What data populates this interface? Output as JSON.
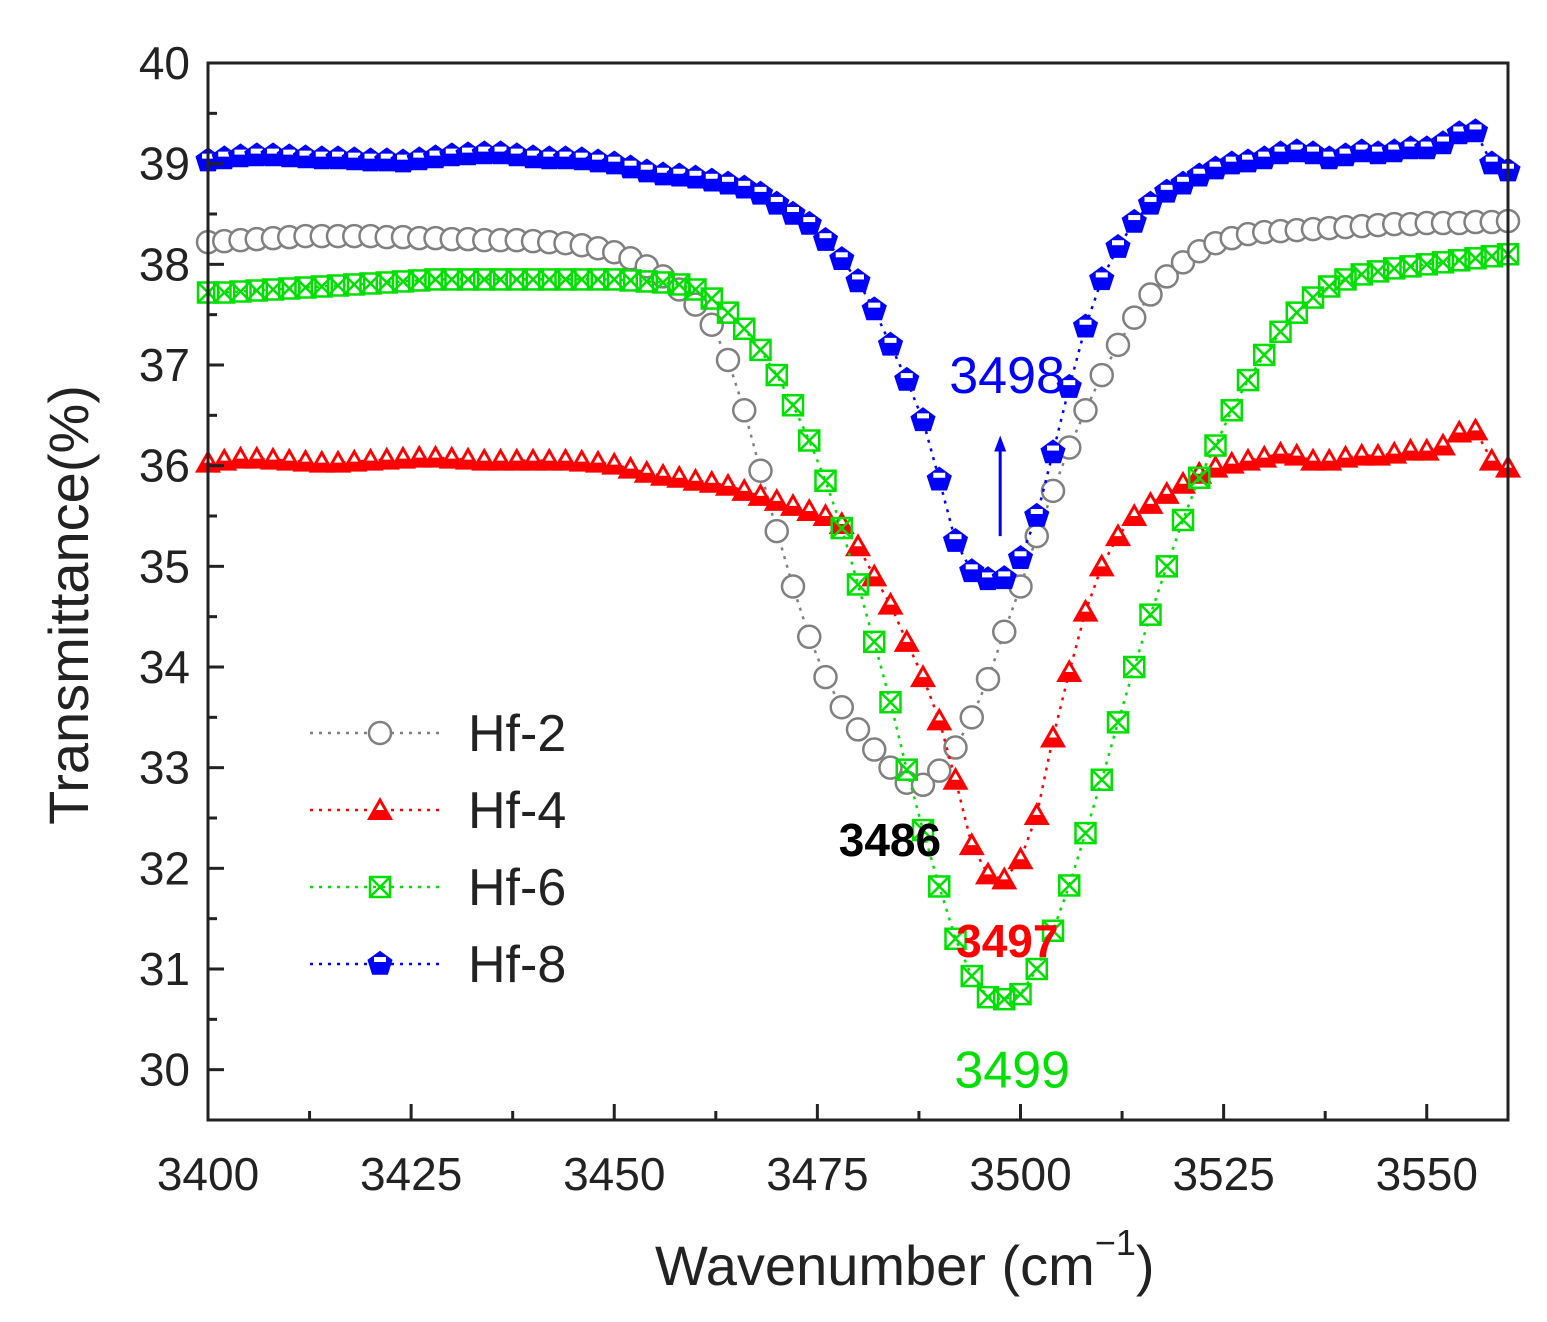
{
  "chart_data": {
    "type": "line",
    "xlabel": "Wavenumber  (cm",
    "xlabel_sup": "−1",
    "xlabel_close": ")",
    "ylabel": "Transmittance(%)",
    "xlim": [
      3400,
      3560
    ],
    "ylim": [
      29.5,
      40
    ],
    "xticks": [
      3400,
      3425,
      3450,
      3475,
      3500,
      3525,
      3550
    ],
    "yticks": [
      30,
      31,
      32,
      33,
      34,
      35,
      36,
      37,
      38,
      39,
      40
    ],
    "grid": false,
    "legend_position": "bottom-left",
    "x": [
      3400,
      3402,
      3404,
      3406,
      3408,
      3410,
      3412,
      3414,
      3416,
      3418,
      3420,
      3422,
      3424,
      3426,
      3428,
      3430,
      3432,
      3434,
      3436,
      3438,
      3440,
      3442,
      3444,
      3446,
      3448,
      3450,
      3452,
      3454,
      3456,
      3458,
      3460,
      3462,
      3464,
      3466,
      3468,
      3470,
      3472,
      3474,
      3476,
      3478,
      3480,
      3482,
      3484,
      3486,
      3488,
      3490,
      3492,
      3494,
      3496,
      3498,
      3500,
      3502,
      3504,
      3506,
      3508,
      3510,
      3512,
      3514,
      3516,
      3518,
      3520,
      3522,
      3524,
      3526,
      3528,
      3530,
      3532,
      3534,
      3536,
      3538,
      3540,
      3542,
      3544,
      3546,
      3548,
      3550,
      3552,
      3554,
      3556,
      3558,
      3560
    ],
    "series": [
      {
        "name": "Hf-2",
        "color": "#808080",
        "marker": "open-circle",
        "values": [
          38.22,
          38.23,
          38.24,
          38.25,
          38.26,
          38.27,
          38.28,
          38.28,
          38.28,
          38.28,
          38.28,
          38.27,
          38.27,
          38.26,
          38.26,
          38.25,
          38.25,
          38.24,
          38.24,
          38.24,
          38.23,
          38.22,
          38.21,
          38.19,
          38.16,
          38.12,
          38.06,
          37.98,
          37.88,
          37.75,
          37.6,
          37.4,
          37.05,
          36.55,
          35.95,
          35.35,
          34.8,
          34.3,
          33.9,
          33.6,
          33.38,
          33.18,
          33.0,
          32.85,
          32.83,
          32.97,
          33.2,
          33.5,
          33.88,
          34.35,
          34.8,
          35.3,
          35.75,
          36.18,
          36.55,
          36.9,
          37.2,
          37.47,
          37.7,
          37.88,
          38.02,
          38.13,
          38.21,
          38.26,
          38.3,
          38.32,
          38.33,
          38.34,
          38.35,
          38.36,
          38.37,
          38.38,
          38.39,
          38.4,
          38.4,
          38.41,
          38.41,
          38.41,
          38.42,
          38.42,
          38.43
        ]
      },
      {
        "name": "Hf-4",
        "color": "#ff0000",
        "marker": "triangle",
        "values": [
          36.03,
          36.05,
          36.07,
          36.07,
          36.06,
          36.05,
          36.04,
          36.03,
          36.03,
          36.04,
          36.05,
          36.06,
          36.07,
          36.08,
          36.08,
          36.07,
          36.06,
          36.05,
          36.05,
          36.05,
          36.05,
          36.05,
          36.05,
          36.04,
          36.03,
          36.01,
          35.97,
          35.93,
          35.9,
          35.88,
          35.85,
          35.83,
          35.8,
          35.75,
          35.7,
          35.65,
          35.6,
          35.55,
          35.5,
          35.42,
          35.2,
          34.9,
          34.62,
          34.25,
          33.9,
          33.47,
          32.88,
          32.23,
          31.94,
          31.89,
          32.09,
          32.53,
          33.3,
          33.95,
          34.55,
          35.0,
          35.3,
          35.5,
          35.62,
          35.72,
          35.82,
          35.92,
          35.98,
          36.02,
          36.05,
          36.08,
          36.12,
          36.1,
          36.05,
          36.05,
          36.08,
          36.1,
          36.1,
          36.12,
          36.15,
          36.15,
          36.2,
          36.33,
          36.35,
          36.05,
          35.98
        ]
      },
      {
        "name": "Hf-6",
        "color": "#00e000",
        "marker": "crossed-square",
        "values": [
          37.72,
          37.72,
          37.73,
          37.74,
          37.75,
          37.76,
          37.77,
          37.78,
          37.79,
          37.8,
          37.81,
          37.82,
          37.83,
          37.84,
          37.85,
          37.85,
          37.85,
          37.85,
          37.85,
          37.85,
          37.85,
          37.85,
          37.85,
          37.85,
          37.85,
          37.85,
          37.84,
          37.83,
          37.82,
          37.8,
          37.75,
          37.66,
          37.52,
          37.36,
          37.15,
          36.9,
          36.6,
          36.25,
          35.85,
          35.38,
          34.82,
          34.25,
          33.65,
          32.98,
          32.38,
          31.82,
          31.3,
          30.93,
          30.72,
          30.7,
          30.75,
          31.0,
          31.38,
          31.83,
          32.35,
          32.88,
          33.45,
          34.0,
          34.52,
          35.0,
          35.46,
          35.88,
          36.2,
          36.55,
          36.85,
          37.1,
          37.33,
          37.52,
          37.67,
          37.78,
          37.85,
          37.9,
          37.93,
          37.96,
          37.98,
          38.0,
          38.02,
          38.04,
          38.06,
          38.08,
          38.1
        ]
      },
      {
        "name": "Hf-8",
        "color": "#0000ff",
        "marker": "pentagon",
        "values": [
          39.03,
          39.05,
          39.07,
          39.08,
          39.08,
          39.07,
          39.06,
          39.05,
          39.05,
          39.04,
          39.03,
          39.03,
          39.02,
          39.04,
          39.06,
          39.08,
          39.09,
          39.1,
          39.1,
          39.08,
          39.06,
          39.05,
          39.05,
          39.04,
          39.02,
          39.0,
          38.96,
          38.92,
          38.89,
          38.88,
          38.86,
          38.83,
          38.8,
          38.76,
          38.7,
          38.6,
          38.5,
          38.4,
          38.24,
          38.05,
          37.83,
          37.55,
          37.2,
          36.85,
          36.45,
          35.86,
          35.25,
          34.95,
          34.87,
          34.88,
          35.08,
          35.5,
          36.13,
          36.78,
          37.38,
          37.85,
          38.17,
          38.42,
          38.6,
          38.72,
          38.8,
          38.88,
          38.95,
          39.0,
          39.02,
          39.05,
          39.1,
          39.12,
          39.1,
          39.05,
          39.08,
          39.12,
          39.1,
          39.12,
          39.15,
          39.15,
          39.2,
          39.3,
          39.32,
          39.0,
          38.93
        ]
      }
    ],
    "annotations": [
      {
        "text": "3498",
        "color": "#0000ff",
        "x": 3498,
        "y": 36.9,
        "bold": false
      },
      {
        "text": "3486",
        "color": "#000000",
        "x": 3486,
        "y": 32.3,
        "bold": true
      },
      {
        "text": "3497",
        "color": "#ff0000",
        "x": 3497,
        "y": 31.3,
        "bold": true
      },
      {
        "text": "3499",
        "color": "#00e000",
        "x": 3499,
        "y": 30.0,
        "bold": false
      }
    ],
    "arrow": {
      "color": "#0000ff",
      "x": 3497.5,
      "from_y": 35.3,
      "to_y": 36.3
    }
  }
}
